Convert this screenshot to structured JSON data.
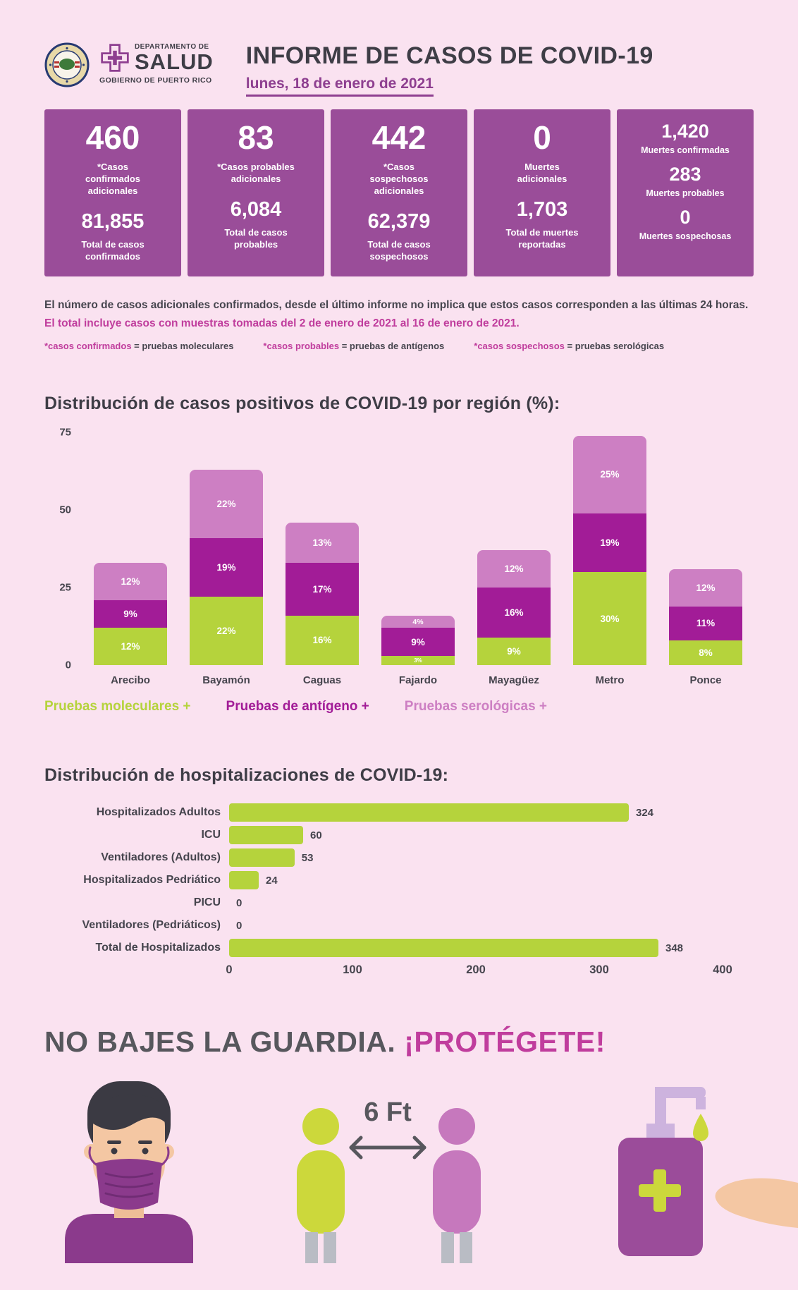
{
  "header": {
    "title": "INFORME DE CASOS DE COVID-19",
    "date": "lunes, 18 de enero de 2021",
    "dept_small": "DEPARTAMENTO DE",
    "dept_big": "SALUD",
    "gov": "GOBIERNO DE PUERTO RICO"
  },
  "stat_cards": [
    {
      "value": "460",
      "label": "*Casos confirmados adicionales",
      "total": "81,855",
      "total_label": "Total de casos confirmados"
    },
    {
      "value": "83",
      "label": "*Casos probables adicionales",
      "total": "6,084",
      "total_label": "Total de casos probables"
    },
    {
      "value": "442",
      "label": "*Casos sospechosos adicionales",
      "total": "62,379",
      "total_label": "Total de casos sospechosos"
    },
    {
      "value": "0",
      "label": "Muertes adicionales",
      "total": "1,703",
      "total_label": "Total de muertes reportadas"
    }
  ],
  "deaths_card": [
    {
      "value": "1,420",
      "label": "Muertes confirmadas"
    },
    {
      "value": "283",
      "label": "Muertes probables"
    },
    {
      "value": "0",
      "label": "Muertes sospechosas"
    }
  ],
  "disclaimer": {
    "dark": "El número de casos adicionales confirmados, desde el último informe no implica que estos casos corresponden a las últimas 24 horas. ",
    "magenta": "El total incluye casos con muestras tomadas del 2 de enero de 2021 al 16 de enero de 2021."
  },
  "footnotes": [
    {
      "term": "*casos confirmados",
      "def": " = pruebas moleculares"
    },
    {
      "term": "*casos probables",
      "def": " = pruebas de antígenos"
    },
    {
      "term": "*casos sospechosos",
      "def": " = pruebas serológicas"
    }
  ],
  "chart_data": [
    {
      "type": "bar",
      "stacked": true,
      "title": "Distribución de casos positivos de COVID-19 por región (%):",
      "categories": [
        "Arecibo",
        "Bayamón",
        "Caguas",
        "Fajardo",
        "Mayagüez",
        "Metro",
        "Ponce"
      ],
      "series": [
        {
          "name": "Pruebas moleculares +",
          "color": "#b5d33c",
          "values": [
            12,
            22,
            16,
            3,
            9,
            30,
            8
          ]
        },
        {
          "name": "Pruebas de antígeno +",
          "color": "#a21c97",
          "values": [
            9,
            19,
            17,
            9,
            16,
            19,
            11
          ]
        },
        {
          "name": "Pruebas serológicas +",
          "color": "#cd7fc3",
          "values": [
            12,
            22,
            13,
            4,
            12,
            25,
            12
          ]
        }
      ],
      "ylim": [
        0,
        75
      ],
      "yticks": [
        0,
        25,
        50,
        75
      ],
      "grid": false,
      "legend_position": "bottom"
    },
    {
      "type": "bar",
      "orientation": "horizontal",
      "title": "Distribución de hospitalizaciones de COVID-19:",
      "categories": [
        "Hospitalizados Adultos",
        "ICU",
        "Ventiladores (Adultos)",
        "Hospitalizados Pedriático",
        "PICU",
        "Ventiladores (Pedriáticos)",
        "Total de Hospitalizados"
      ],
      "values": [
        324,
        60,
        53,
        24,
        0,
        0,
        348
      ],
      "bar_color": "#b5d33c",
      "xlim": [
        0,
        400
      ],
      "xticks": [
        0,
        100,
        200,
        300,
        400
      ],
      "grid": false
    }
  ],
  "footer": {
    "headline_dark": "NO BAJES LA GUARDIA.",
    "headline_accent": "¡PROTÉGETE!",
    "distance_label": "6 Ft"
  },
  "colors": {
    "background": "#fae2f0",
    "card_purple": "#9a4d99",
    "accent_magenta": "#c03d9d",
    "green": "#b5d33c",
    "dark_magenta": "#a21c97",
    "light_pink": "#cd7fc3",
    "text_dark": "#45444d"
  }
}
